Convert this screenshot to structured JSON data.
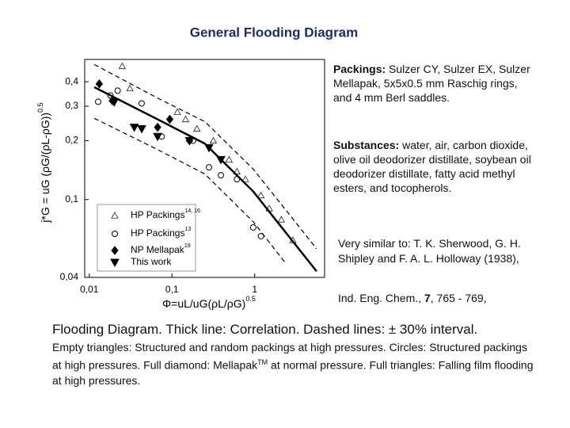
{
  "chart_data": {
    "type": "scatter",
    "title": "General Flooding Diagram",
    "xlabel": "Φ=uL/uG(ρL/ρG)",
    "xlabel_exp": "0.5",
    "ylabel": "j*G = uG (ρG/(ρL-ρG))",
    "ylabel_exp": "0.5",
    "xscale": "log",
    "yscale": "log",
    "xlim": [
      0.0088,
      7
    ],
    "ylim": [
      0.04,
      0.52
    ],
    "xticks": [
      {
        "value": 0.01,
        "label": "0,01"
      },
      {
        "value": 0.1,
        "label": "0,1"
      },
      1
    ],
    "yticks": [
      {
        "value": 0.04,
        "label": "0,04"
      },
      {
        "value": 0.1,
        "label": "0,1"
      },
      {
        "value": 0.2,
        "label": "0,2"
      },
      {
        "value": 0.3,
        "label": "0,3"
      },
      {
        "value": 0.4,
        "label": "0,4"
      }
    ],
    "grid": false,
    "legend": "lower-left",
    "series": [
      {
        "name": "HP Packings",
        "ref": "14, 16",
        "marker": "triangle-open",
        "color": "#000000",
        "x": [
          0.025,
          0.031,
          0.116,
          0.146,
          0.2,
          0.316,
          0.49,
          0.61,
          0.77,
          1.19,
          1.5,
          2.1,
          2.9
        ],
        "values": [
          0.48,
          0.37,
          0.28,
          0.257,
          0.23,
          0.2,
          0.16,
          0.139,
          0.127,
          0.105,
          0.09,
          0.079,
          0.062
        ]
      },
      {
        "name": "HP Packings",
        "ref": "13",
        "marker": "circle-open",
        "color": "#000000",
        "x": [
          0.0128,
          0.018,
          0.022,
          0.043,
          0.075,
          0.18,
          0.28,
          0.39,
          0.61,
          0.96,
          1.19
        ],
        "values": [
          0.316,
          0.34,
          0.36,
          0.31,
          0.21,
          0.2,
          0.146,
          0.133,
          0.127,
          0.072,
          0.065
        ]
      },
      {
        "name": "NP Mellapak",
        "ref": "19",
        "marker": "diamond",
        "color": "#000000",
        "x": [
          0.0132,
          0.019,
          0.067,
          0.094,
          0.163
        ],
        "values": [
          0.39,
          0.32,
          0.234,
          0.257,
          0.2
        ]
      },
      {
        "name": "This work",
        "marker": "triangle-down",
        "color": "#000000",
        "x": [
          0.02,
          0.035,
          0.043,
          0.067,
          0.163,
          0.28,
          0.39
        ],
        "values": [
          0.315,
          0.234,
          0.23,
          0.21,
          0.2,
          0.184,
          0.16
        ]
      }
    ],
    "lines": [
      {
        "style": "thick",
        "x": [
          0.0115,
          0.067,
          0.25,
          0.96,
          2.3,
          5.6
        ],
        "values": [
          0.375,
          0.257,
          0.193,
          0.11,
          0.069,
          0.043
        ]
      },
      {
        "style": "dashed",
        "x": [
          0.0115,
          0.067,
          0.25,
          0.96,
          2.3,
          5.6
        ],
        "values": [
          0.49,
          0.33,
          0.25,
          0.143,
          0.09,
          0.056
        ]
      },
      {
        "style": "dashed",
        "x": [
          0.0115,
          0.067,
          0.25,
          0.96,
          2.3
        ],
        "values": [
          0.26,
          0.18,
          0.135,
          0.077,
          0.048
        ]
      }
    ]
  },
  "notes": {
    "packings_head": "Packings:",
    "packings": "Sulzer CY, Sulzer EX, Sulzer Mellapak, 5x5x0.5 mm Raschig rings, and 4 mm Berl saddles.",
    "substances_head": "Substances:",
    "substances": "water, air, carbon dioxide, olive oil deodorizer distillate, soybean oil deodorizer distillate, fatty acid methyl esters, and tocopherols.",
    "reference": "Very similar to: T. K. Sherwood, G. H. Shipley and F. A. L. Holloway (1938),",
    "journal": "Ind. Eng. Chem.,",
    "volume": "7",
    "pages": ", 765 - 769,"
  },
  "caption": {
    "title": "Flooding Diagram. Thick line: Correlation. Dashed lines: ± 30% interval.",
    "body_1": "Empty triangles: Structured and random packings at high pressures. Circles: Structured packings at high pressures. Full diamond: Mellapak",
    "tm": "TM",
    "body_2": " at normal pressure. Full triangles: Falling film flooding at high pressures."
  }
}
